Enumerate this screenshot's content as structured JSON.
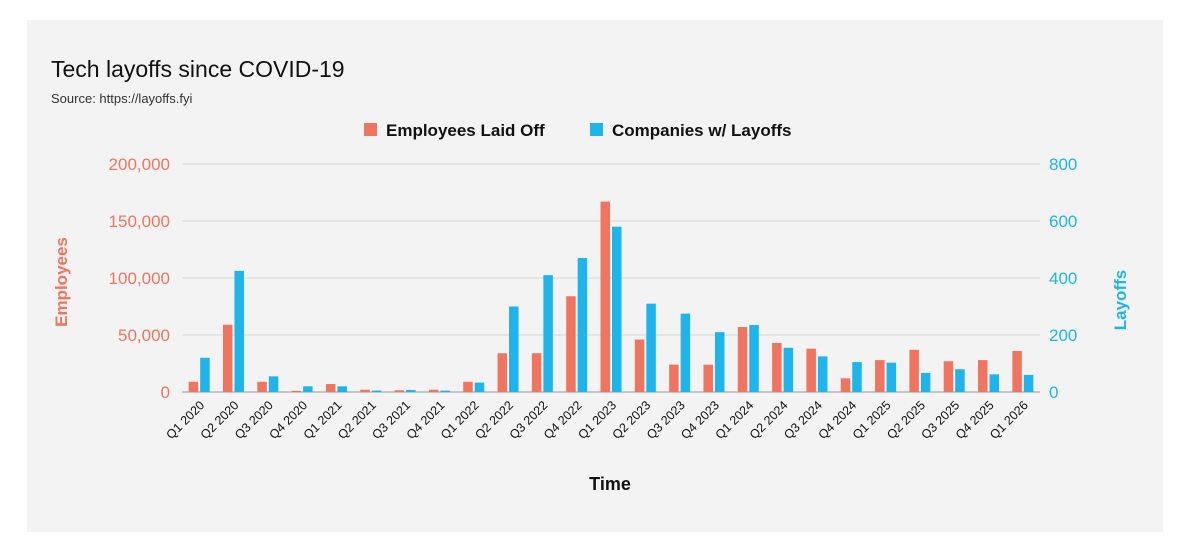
{
  "chart_data": {
    "type": "bar",
    "title": "Tech layoffs since COVID-19",
    "subtitle": "Source: https://layoffs.fyi",
    "xlabel": "Time",
    "ylabel_left": "Employees",
    "ylabel_right": "Layoffs",
    "ylim_left": [
      0,
      200000
    ],
    "ylim_right": [
      0,
      800
    ],
    "yticks_left": [
      "0",
      "50,000",
      "100,000",
      "150,000",
      "200,000"
    ],
    "yticks_right": [
      "0",
      "200",
      "400",
      "600",
      "800"
    ],
    "yticks_left_values": [
      0,
      50000,
      100000,
      150000,
      200000
    ],
    "yticks_right_values": [
      0,
      200,
      400,
      600,
      800
    ],
    "legend_position": "top-center",
    "grid": true,
    "colors": {
      "employees": "#f07560",
      "companies": "#1fb5ea",
      "grid": "#d7d7d7"
    },
    "categories": [
      "Q1 2020",
      "Q2 2020",
      "Q3 2020",
      "Q4 2020",
      "Q1 2021",
      "Q2 2021",
      "Q3 2021",
      "Q4 2021",
      "Q1 2022",
      "Q2 2022",
      "Q3 2022",
      "Q4 2022",
      "Q1 2023",
      "Q2 2023",
      "Q3 2023",
      "Q4 2023",
      "Q1 2024",
      "Q2 2024",
      "Q3 2024",
      "Q4 2024",
      "Q1 2025",
      "Q2 2025",
      "Q3 2025",
      "Q4 2025",
      "Q1 2026"
    ],
    "series": [
      {
        "name": "Employees Laid Off",
        "axis": "left",
        "values": [
          9000,
          59000,
          9000,
          1000,
          7000,
          2000,
          1500,
          2000,
          9000,
          34000,
          34000,
          84000,
          167000,
          46000,
          24000,
          24000,
          57000,
          43000,
          38000,
          12000,
          28000,
          37000,
          27000,
          28000,
          36000
        ]
      },
      {
        "name": "Companies w/ Layoffs",
        "axis": "right",
        "values": [
          120,
          425,
          55,
          20,
          20,
          5,
          7,
          5,
          33,
          300,
          410,
          470,
          580,
          310,
          275,
          210,
          235,
          155,
          125,
          105,
          103,
          67,
          80,
          62,
          60
        ]
      }
    ]
  }
}
